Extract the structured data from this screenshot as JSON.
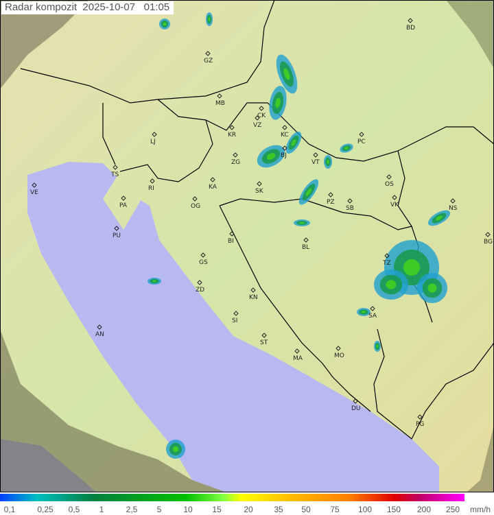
{
  "title": "Radar kompozit  2025-10-07   01:05",
  "colors": {
    "sea": "#b9b9f2",
    "land": "#d9e6a8",
    "outside": "#8a8468",
    "rain_light": "#00a0c0",
    "rain_mid": "#1a9a50",
    "rain_heavy": "#40d020",
    "border": "#000000"
  },
  "legend": {
    "labels": [
      "0,1",
      "0,25",
      "0,5",
      "1",
      "2,5",
      "5",
      "10",
      "15",
      "20",
      "35",
      "50",
      "75",
      "100",
      "150",
      "200",
      "250"
    ],
    "unit": "mm/h"
  },
  "cities": [
    "BD",
    "GZ",
    "MB",
    "CK",
    "VZ",
    "KR",
    "KC",
    "PC",
    "LJ",
    "ZG",
    "BJ",
    "VT",
    "TS",
    "VE",
    "RI",
    "KA",
    "SK",
    "OS",
    "PA",
    "OG",
    "PZ",
    "SB",
    "VK",
    "NS",
    "BG",
    "PU",
    "BI",
    "BL",
    "GS",
    "TZ",
    "ZD",
    "KN",
    "SA",
    "AN",
    "SI",
    "ST",
    "MA",
    "MO",
    "DU",
    "PG"
  ]
}
